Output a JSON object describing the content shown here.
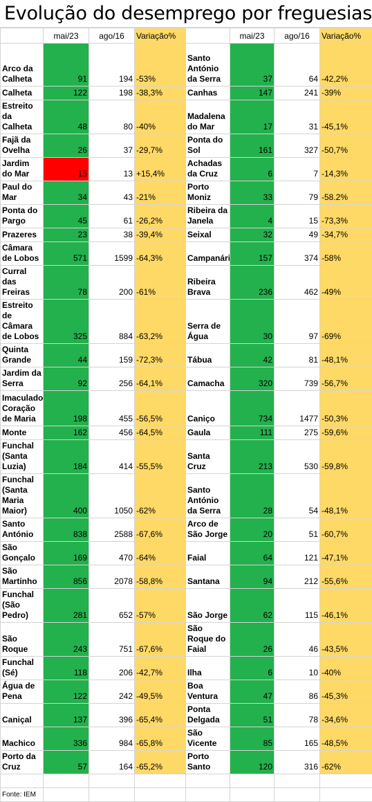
{
  "title": "Evolução do desemprego por freguesias",
  "headers": {
    "col1": "mai/23",
    "col2": "ago/16",
    "col3": "Variação%"
  },
  "colors": {
    "green": "#22b14c",
    "red": "#ff0000",
    "yellow": "#ffd966"
  },
  "rows": [
    {
      "l_name": "Arco da Calheta",
      "l_may": "91",
      "l_aug": "194",
      "l_var": "-53%",
      "r_name": "Santo António da Serra",
      "r_may": "37",
      "r_aug": "64",
      "r_var": "-42,2%"
    },
    {
      "l_name": "Calheta",
      "l_may": "122",
      "l_aug": "198",
      "l_var": "-38,3%",
      "r_name": "Canhas",
      "r_may": "147",
      "r_aug": "241",
      "r_var": "-39%"
    },
    {
      "l_name": "Estreito da Calheta",
      "l_may": "48",
      "l_aug": "80",
      "l_var": "-40%",
      "r_name": "Madalena do Mar",
      "r_may": "17",
      "r_aug": "31",
      "r_var": "-45,1%"
    },
    {
      "l_name": "Fajã da Ovelha",
      "l_may": "26",
      "l_aug": "37",
      "l_var": "-29,7%",
      "r_name": "Ponta do Sol",
      "r_may": "161",
      "r_aug": "327",
      "r_var": "-50,7%"
    },
    {
      "l_name": "Jardim do Mar",
      "l_may": "15",
      "l_aug": "13",
      "l_var": "+15,4%",
      "r_name": "Achadas da Cruz",
      "r_may": "6",
      "r_aug": "7",
      "r_var": "-14,3%"
    },
    {
      "l_name": "Paul do Mar",
      "l_may": "34",
      "l_aug": "43",
      "l_var": "-21%",
      "r_name": "Porto Moniz",
      "r_may": "33",
      "r_aug": "79",
      "r_var": "-58.2%"
    },
    {
      "l_name": "Ponta do Pargo",
      "l_may": "45",
      "l_aug": "61",
      "l_var": "-26,2%",
      "r_name": "Ribeira da Janela",
      "r_may": "4",
      "r_aug": "15",
      "r_var": "-73,3%"
    },
    {
      "l_name": "Prazeres",
      "l_may": "23",
      "l_aug": "38",
      "l_var": "-39,4%",
      "r_name": "Seixal",
      "r_may": "32",
      "r_aug": "49",
      "r_var": "-34,7%"
    },
    {
      "l_name": "Câmara de Lobos",
      "l_may": "571",
      "l_aug": "1599",
      "l_var": "-64,3%",
      "r_name": "Campanário",
      "r_may": "157",
      "r_aug": "374",
      "r_var": "-58%"
    },
    {
      "l_name": "Curral das Freiras",
      "l_may": "78",
      "l_aug": "200",
      "l_var": "-61%",
      "r_name": "Ribeira Brava",
      "r_may": "236",
      "r_aug": "462",
      "r_var": "-49%"
    },
    {
      "l_name": "Estreito de Câmara de Lobos",
      "l_may": "325",
      "l_aug": "884",
      "l_var": "-63,2%",
      "r_name": "Serra de Água",
      "r_may": "30",
      "r_aug": "97",
      "r_var": "-69%"
    },
    {
      "l_name": "Quinta Grande",
      "l_may": "44",
      "l_aug": "159",
      "l_var": "-72,3%",
      "r_name": "Tábua",
      "r_may": "42",
      "r_aug": "81",
      "r_var": "-48,1%"
    },
    {
      "l_name": "Jardim da Serra",
      "l_may": "92",
      "l_aug": "256",
      "l_var": "-64,1%",
      "r_name": "Camacha",
      "r_may": "320",
      "r_aug": "739",
      "r_var": "-56,7%"
    },
    {
      "l_name": "Imaculado Coração de Maria",
      "l_may": "198",
      "l_aug": "455",
      "l_var": "-56,5%",
      "r_name": "Caniço",
      "r_may": "734",
      "r_aug": "1477",
      "r_var": "-50,3%"
    },
    {
      "l_name": "Monte",
      "l_may": "162",
      "l_aug": "456",
      "l_var": "-64,5%",
      "r_name": "Gaula",
      "r_may": "111",
      "r_aug": "275",
      "r_var": "-59,6%"
    },
    {
      "l_name": "Funchal (Santa Luzia)",
      "l_may": "184",
      "l_aug": "414",
      "l_var": "-55,5%",
      "r_name": "Santa Cruz",
      "r_may": "213",
      "r_aug": "530",
      "r_var": "-59,8%"
    },
    {
      "l_name": "Funchal (Santa Maria Maior)",
      "l_may": "400",
      "l_aug": "1050",
      "l_var": "-62%",
      "r_name": "Santo António da Serra",
      "r_may": "28",
      "r_aug": "54",
      "r_var": "-48,1%"
    },
    {
      "l_name": "Santo António",
      "l_may": "838",
      "l_aug": "2588",
      "l_var": "-67,6%",
      "r_name": "Arco de São Jorge",
      "r_may": "20",
      "r_aug": "51",
      "r_var": "-60,7%"
    },
    {
      "l_name": "São Gonçalo",
      "l_may": "169",
      "l_aug": "470",
      "l_var": "-64%",
      "r_name": "Faial",
      "r_may": "64",
      "r_aug": "121",
      "r_var": "-47,1%"
    },
    {
      "l_name": "São Martinho",
      "l_may": "856",
      "l_aug": "2078",
      "l_var": "-58,8%",
      "r_name": "Santana",
      "r_may": "94",
      "r_aug": "212",
      "r_var": "-55,6%"
    },
    {
      "l_name": "Funchal (São Pedro)",
      "l_may": "281",
      "l_aug": "652",
      "l_var": "-57%",
      "r_name": "São Jorge",
      "r_may": "62",
      "r_aug": "115",
      "r_var": "-46,1%"
    },
    {
      "l_name": "São Roque",
      "l_may": "243",
      "l_aug": "751",
      "l_var": "-67,6%",
      "r_name": "São Roque do Faial",
      "r_may": "26",
      "r_aug": "46",
      "r_var": "-43,5%"
    },
    {
      "l_name": "Funchal (Sé)",
      "l_may": "118",
      "l_aug": "206",
      "l_var": "-42,7%",
      "r_name": "Ilha",
      "r_may": "6",
      "r_aug": "10",
      "r_var": "-40%"
    },
    {
      "l_name": "Água de Pena",
      "l_may": "122",
      "l_aug": "242",
      "l_var": "-49,5%",
      "r_name": "Boa Ventura",
      "r_may": "47",
      "r_aug": "86",
      "r_var": "-45,3%"
    },
    {
      "l_name": "Caniçal",
      "l_may": "137",
      "l_aug": "396",
      "l_var": "-65,4%",
      "r_name": "Ponta Delgada",
      "r_may": "51",
      "r_aug": "78",
      "r_var": "-34,6%"
    },
    {
      "l_name": "Machico",
      "l_may": "336",
      "l_aug": "984",
      "l_var": "-65,8%",
      "r_name": "São Vicente",
      "r_may": "85",
      "r_aug": "165",
      "r_var": "-48,5%"
    },
    {
      "l_name": "Porto da Cruz",
      "l_may": "57",
      "l_aug": "164",
      "l_var": "-65,2%",
      "r_name": "Porto Santo",
      "r_may": "120",
      "r_aug": "316",
      "r_var": "-62%"
    }
  ],
  "source": "Fonte: IEM"
}
